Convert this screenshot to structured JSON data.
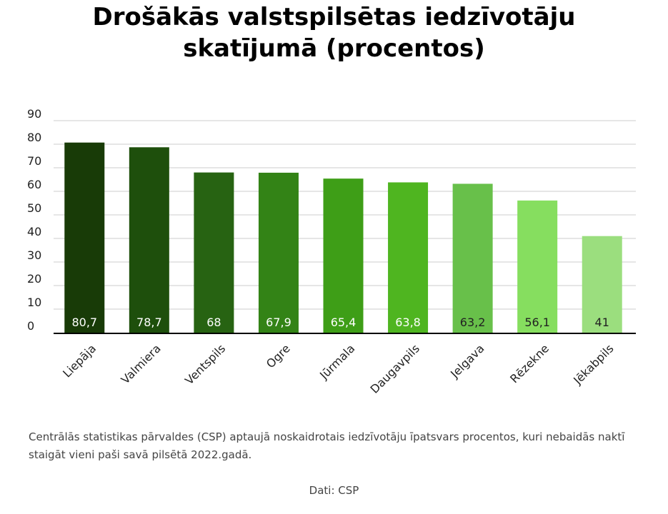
{
  "title_line1": "Drošākās valstspilsētas iedzīvotāju",
  "title_line2": "skatījumā (procentos)",
  "caption": "Centrālās statistikas pārvaldes (CSP)  aptaujā noskaidrotais iedzīvotāju īpatsvars procentos, kuri nebaidās naktī staigāt vieni paši savā pilsētā 2022.gadā.",
  "source": "Dati: CSP",
  "chart_data": {
    "type": "bar",
    "title": "Drošākās valstspilsētas iedzīvotāju skatījumā (procentos)",
    "xlabel": "",
    "ylabel": "",
    "categories": [
      "Liepāja",
      "Valmiera",
      "Ventspils",
      "Ogre",
      "Jūrmala",
      "Daugavpils",
      "Jelgava",
      "Rēzekne",
      "Jēkabpils"
    ],
    "values": [
      80.7,
      78.7,
      68,
      67.9,
      65.4,
      63.8,
      63.2,
      56.1,
      41
    ],
    "value_labels": [
      "80,7",
      "78,7",
      "68",
      "67,9",
      "65,4",
      "63,8",
      "63,2",
      "56,1",
      "41"
    ],
    "ylim": [
      0,
      90
    ],
    "yticks": [
      0,
      10,
      20,
      30,
      40,
      50,
      60,
      70,
      80,
      90
    ],
    "grid": true,
    "legend": "none",
    "bar_colors": [
      "#183b07",
      "#1e4f0c",
      "#276312",
      "#338316",
      "#3e9e17",
      "#4fb520",
      "#68c04a",
      "#86de5f",
      "#9bde7e"
    ],
    "label_colors": [
      "#ffffff",
      "#ffffff",
      "#ffffff",
      "#ffffff",
      "#ffffff",
      "#ffffff",
      "#222222",
      "#222222",
      "#222222"
    ],
    "grid_color": "#cccccc",
    "axis_color": "#000000"
  }
}
